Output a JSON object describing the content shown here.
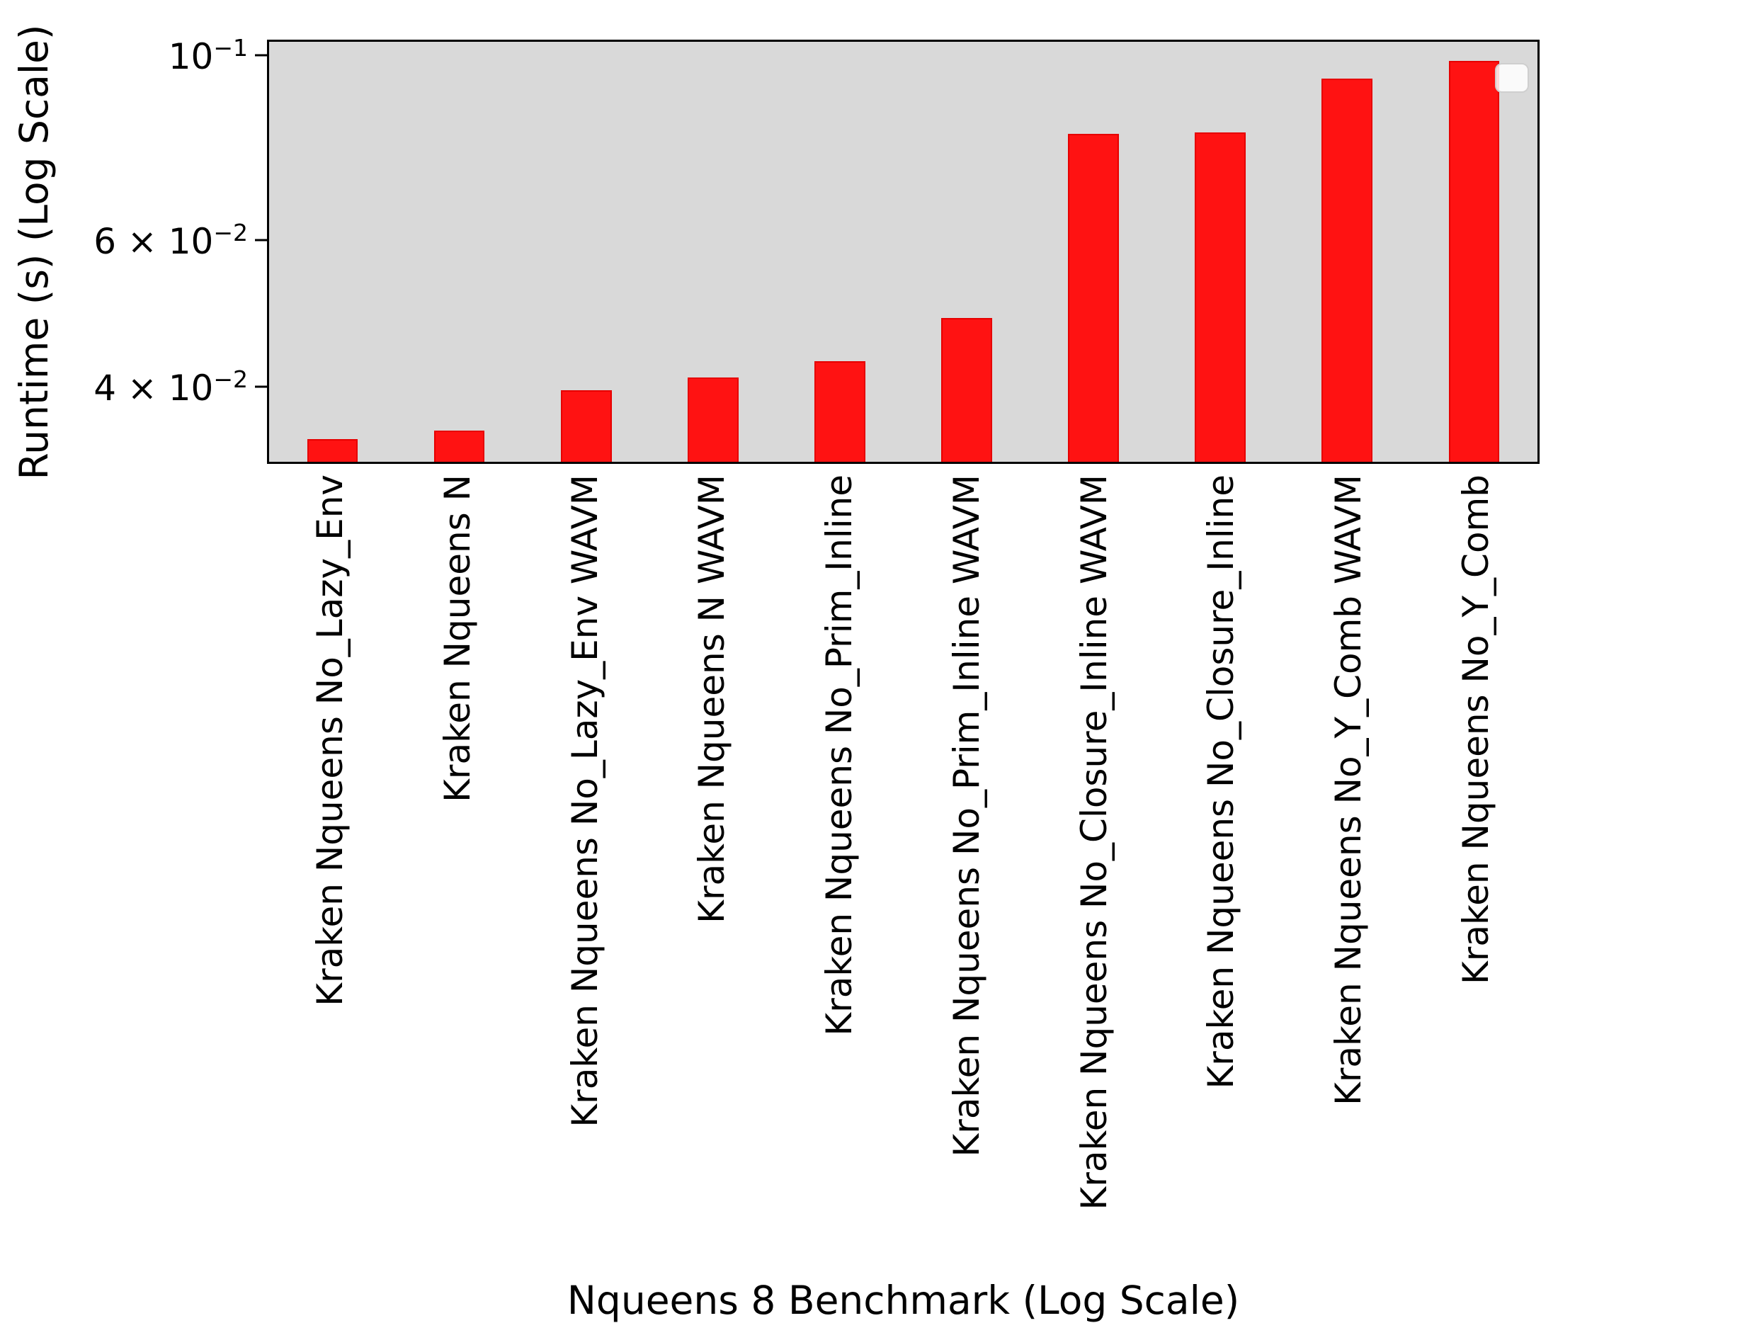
{
  "chart_data": {
    "type": "bar",
    "title": "",
    "xlabel": "Nqueens 8 Benchmark (Log Scale)",
    "ylabel": "Runtime (s) (Log Scale)",
    "yscale": "log",
    "ylim": [
      0.0325,
      0.1038
    ],
    "grid": false,
    "legend": {
      "visible": true,
      "entries": [],
      "position": "upper right"
    },
    "plot_bg": "#d9d9d9",
    "bar_fill": "#ff1212",
    "bar_edge": "#e60000",
    "categories": [
      "Kraken Nqueens No_Lazy_Env",
      "Kraken Nqueens N",
      "Kraken Nqueens No_Lazy_Env WAVM",
      "Kraken Nqueens N WAVM",
      "Kraken Nqueens No_Prim_Inline",
      "Kraken Nqueens No_Prim_Inline WAVM",
      "Kraken Nqueens No_Closure_Inline WAVM",
      "Kraken Nqueens No_Closure_Inline",
      "Kraken Nqueens No_Y_Comb WAVM",
      "Kraken Nqueens No_Y_Comb"
    ],
    "values": [
      0.0346,
      0.0354,
      0.0396,
      0.041,
      0.0429,
      0.0484,
      0.0805,
      0.0808,
      0.0938,
      0.0985
    ],
    "yticks": [
      {
        "value": 0.1,
        "mantissa": "10",
        "exponent": "−1"
      },
      {
        "value": 0.06,
        "mantissa": "6 × 10",
        "exponent": "−2"
      },
      {
        "value": 0.04,
        "mantissa": "4 × 10",
        "exponent": "−2"
      }
    ]
  }
}
